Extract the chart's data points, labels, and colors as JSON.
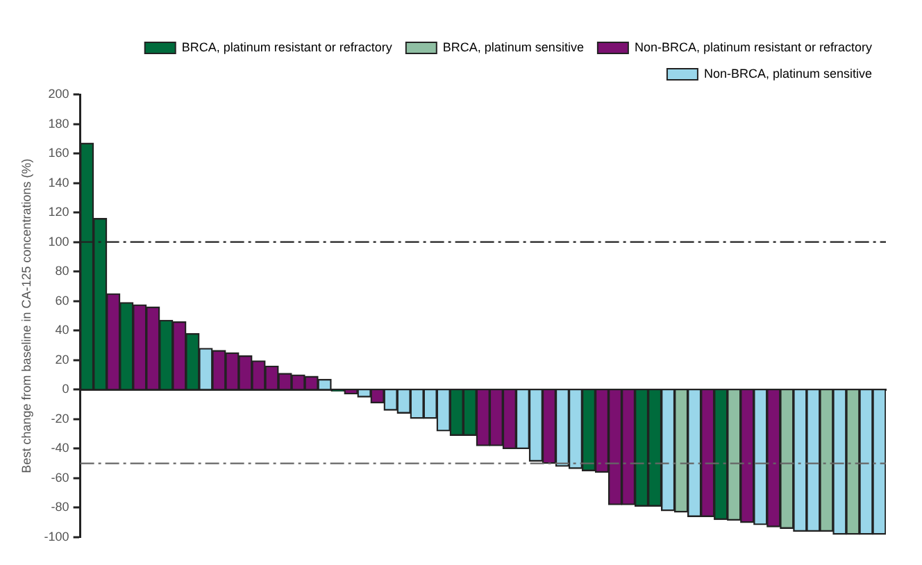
{
  "chart_data": {
    "type": "bar",
    "ylabel": "Best change from baseline in CA-125 concentrations (%)",
    "categories": [
      null,
      null,
      null,
      null,
      null,
      null,
      null,
      null,
      null,
      null,
      null,
      null,
      null,
      null,
      null,
      null,
      null,
      null,
      null,
      null,
      null,
      null,
      null,
      null,
      null,
      null,
      null,
      null,
      null,
      null,
      null,
      null,
      null,
      null,
      null,
      null,
      null,
      null,
      null,
      null,
      null,
      null,
      null,
      null,
      null,
      null,
      null,
      null,
      null,
      null,
      null,
      null,
      null,
      null,
      null,
      null,
      null,
      null,
      null,
      null,
      null
    ],
    "series": [
      {
        "name": "BRCA, platinum resistant or refractory",
        "color": "#006b3c",
        "values": [
          167,
          116,
          null,
          59,
          null,
          null,
          47,
          null,
          38,
          null,
          null,
          null,
          null,
          null,
          null,
          null,
          null,
          null,
          null,
          -1,
          null,
          null,
          null,
          null,
          null,
          null,
          null,
          null,
          -31,
          -31,
          null,
          null,
          null,
          null,
          null,
          null,
          null,
          null,
          -55,
          null,
          null,
          null,
          -79,
          -79,
          null,
          null,
          null,
          null,
          -88,
          null,
          null,
          null,
          null,
          null,
          null,
          null,
          null,
          null,
          null,
          null,
          null
        ]
      },
      {
        "name": "BRCA, platinum sensitive",
        "color": "#8fbfa3",
        "values": [
          null,
          null,
          null,
          null,
          null,
          null,
          null,
          null,
          null,
          null,
          null,
          null,
          null,
          null,
          null,
          null,
          null,
          null,
          null,
          null,
          null,
          null,
          null,
          null,
          null,
          null,
          null,
          null,
          null,
          null,
          null,
          null,
          null,
          null,
          null,
          null,
          null,
          null,
          null,
          null,
          null,
          null,
          null,
          null,
          null,
          -83,
          null,
          null,
          null,
          -88.5,
          null,
          null,
          null,
          -94,
          null,
          null,
          -96,
          null,
          -98,
          null,
          null
        ]
      },
      {
        "name": "Non-BRCA, platinum resistant or refractory",
        "color": "#7b1070",
        "values": [
          null,
          null,
          65,
          null,
          57.5,
          56,
          null,
          46,
          null,
          null,
          26.5,
          25,
          23,
          19.5,
          16,
          11,
          10,
          9,
          null,
          null,
          -3,
          null,
          -9,
          null,
          null,
          null,
          null,
          null,
          null,
          null,
          -38,
          -38,
          -40,
          null,
          null,
          -50,
          null,
          null,
          null,
          -56,
          -78,
          -78,
          null,
          null,
          null,
          null,
          null,
          -86,
          null,
          null,
          -90,
          null,
          -93,
          null,
          null,
          null,
          null,
          null,
          null,
          null,
          null
        ]
      },
      {
        "name": "Non-BRCA, platinum sensitive",
        "color": "#99d6ea",
        "values": [
          null,
          null,
          null,
          null,
          null,
          null,
          null,
          null,
          null,
          28,
          null,
          null,
          null,
          null,
          null,
          null,
          null,
          null,
          7,
          null,
          null,
          -5,
          null,
          -14,
          -16,
          -19.5,
          -19.5,
          -28,
          null,
          null,
          null,
          null,
          null,
          -40,
          -48.5,
          null,
          -52,
          -53.5,
          null,
          null,
          null,
          null,
          null,
          null,
          -82,
          null,
          -86,
          null,
          null,
          null,
          null,
          -91.5,
          null,
          null,
          -96,
          -96,
          null,
          -98,
          null,
          -98,
          -98
        ]
      }
    ],
    "ylim": [
      -100,
      200
    ],
    "yticks": [
      -100,
      -80,
      -60,
      -40,
      -20,
      0,
      20,
      40,
      60,
      80,
      100,
      120,
      140,
      160,
      180,
      200
    ],
    "ref_lines": [
      {
        "axis": "y",
        "value": 100,
        "line_style": "dashdot",
        "color": "#222222"
      },
      {
        "axis": "y",
        "value": -50,
        "line_style": "dashdot",
        "color": "#666666"
      }
    ],
    "grid": false,
    "legend": "top right",
    "tick_labels": "y"
  }
}
